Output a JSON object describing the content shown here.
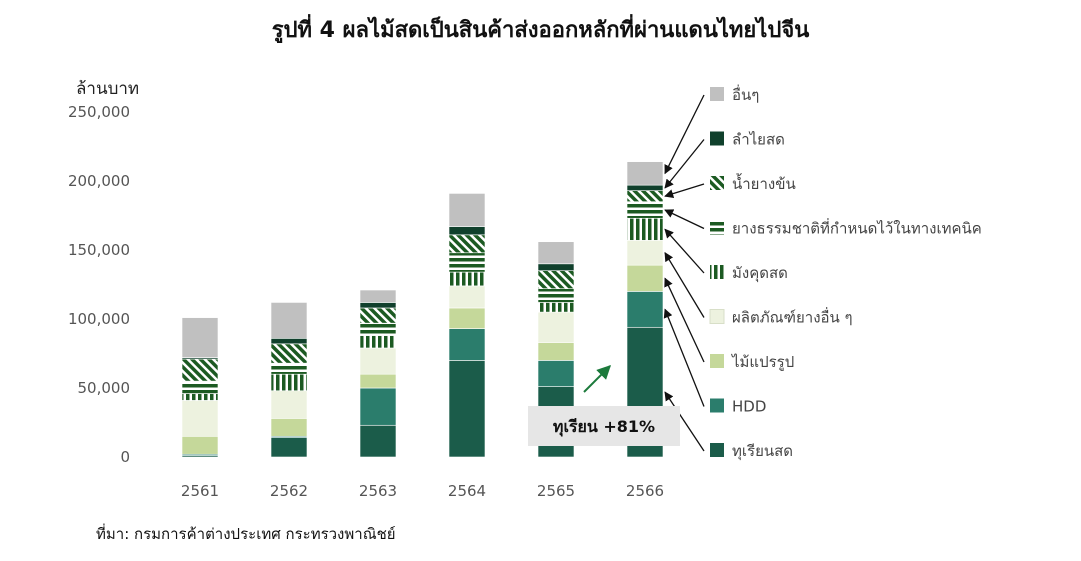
{
  "title": "รูปที่ 4 ผลไม้สดเป็นสินค้าส่งออกหลักที่ผ่านแดนไทยไปจีน",
  "source": "ที่มา: กรมการค้าต่างประเทศ กระทรวงพาณิชย์",
  "chart_data": {
    "type": "bar",
    "stacked": true,
    "ylabel": "ล้านบาท",
    "ylim": [
      0,
      250000
    ],
    "yticks": [
      0,
      50000,
      100000,
      150000,
      200000,
      250000
    ],
    "ytick_labels": [
      "0",
      "50,000",
      "100,000",
      "150,000",
      "200,000",
      "250,000"
    ],
    "categories": [
      "2561",
      "2562",
      "2563",
      "2564",
      "2565",
      "2566"
    ],
    "grid": false,
    "legend_position": "right",
    "series": [
      {
        "name": "ทุเรียนสด",
        "color": "#1b5c4a",
        "pattern": "solid",
        "values": [
          1000,
          14000,
          23000,
          70000,
          51000,
          94000
        ]
      },
      {
        "name": "HDD",
        "color": "#2b7d6c",
        "pattern": "solid",
        "values": [
          1000,
          1000,
          27000,
          23000,
          19000,
          26000
        ]
      },
      {
        "name": "ไม้แปรรูป",
        "color": "#c5d89a",
        "pattern": "solid",
        "values": [
          13000,
          13000,
          10000,
          15000,
          13000,
          19000
        ]
      },
      {
        "name": "ผลิตภัณฑ์ยางอื่น ๆ",
        "color": "#edf2df",
        "pattern": "solid",
        "values": [
          26000,
          20000,
          19000,
          16000,
          22000,
          18000
        ]
      },
      {
        "name": "มังคุดสด",
        "color": "#1c5a22",
        "pattern": "vertical",
        "values": [
          5000,
          12000,
          9000,
          10000,
          7000,
          16000
        ]
      },
      {
        "name": "ยางธรรมชาติที่กำหนดไว้ในทางเทคนิค",
        "color": "#1c5a22",
        "pattern": "horizontal",
        "values": [
          9000,
          8000,
          9000,
          14000,
          10000,
          12000
        ]
      },
      {
        "name": "น้ำยางข้น",
        "color": "#1c5a22",
        "pattern": "diagonal",
        "values": [
          16000,
          14000,
          11000,
          13000,
          13000,
          8000
        ]
      },
      {
        "name": "ลำไยสด",
        "color": "#10402c",
        "pattern": "solid",
        "values": [
          1000,
          4000,
          4000,
          6000,
          5000,
          4000
        ]
      },
      {
        "name": "อื่นๆ",
        "color": "#c0c0c0",
        "pattern": "solid",
        "values": [
          29000,
          26000,
          9000,
          24000,
          16000,
          17000
        ]
      }
    ],
    "annotations": [
      {
        "text": "ทุเรียน +81%",
        "series": "ทุเรียนสด"
      }
    ]
  }
}
